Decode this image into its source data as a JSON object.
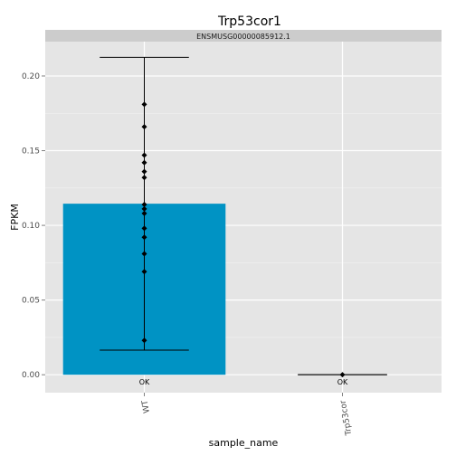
{
  "chart_data": {
    "type": "bar",
    "title": "Trp53cor1",
    "facet_label": "ENSMUSG00000085912.1",
    "xlabel": "sample_name",
    "ylabel": "FPKM",
    "categories": [
      "WT",
      "Trp53cor"
    ],
    "values": [
      0.1145,
      0.0
    ],
    "error_low": [
      0.0165,
      0.0
    ],
    "error_high": [
      0.2125,
      0.0
    ],
    "status_labels": [
      "OK",
      "OK"
    ],
    "points": [
      {
        "category": "WT",
        "values": [
          0.181,
          0.166,
          0.147,
          0.142,
          0.136,
          0.132,
          0.114,
          0.111,
          0.108,
          0.098,
          0.092,
          0.081,
          0.069,
          0.023
        ]
      },
      {
        "category": "Trp53cor",
        "values": [
          0.0
        ]
      }
    ],
    "ylim": [
      -0.012,
      0.223
    ],
    "yticks": [
      "0.00",
      "0.05",
      "0.10",
      "0.15",
      "0.20"
    ],
    "bar_color": "#0093c4",
    "panel_background": "#e5e5e5",
    "strip_background": "#cccccc",
    "grid": true
  }
}
